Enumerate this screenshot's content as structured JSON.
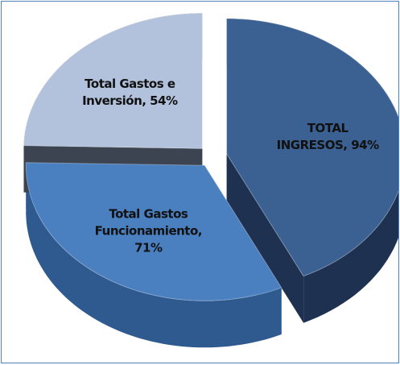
{
  "chart_data": {
    "type": "pie",
    "three_d": true,
    "exploded": true,
    "values": [
      94,
      71,
      54
    ],
    "value_labels": [
      "TOTAL INGRESOS, 94%",
      "Total Gastos Funcionamiento, 71%",
      "Total Gastos e Inversión, 54%"
    ],
    "colors": [
      "#3b6092",
      "#4a7fc0",
      "#b3c2dc"
    ],
    "side_colors": [
      "#1e3150",
      "#2f5a8f",
      "#3c4452"
    ]
  }
}
